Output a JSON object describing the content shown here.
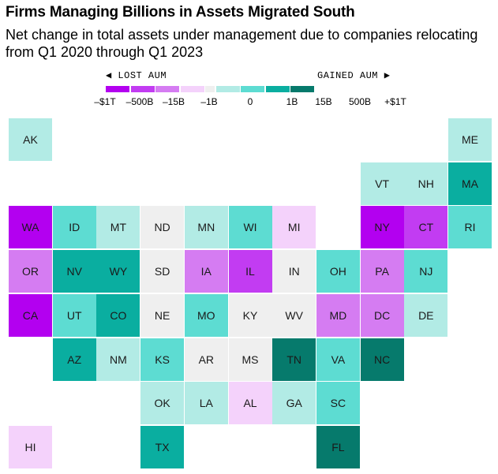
{
  "title": "Firms Managing Billions in Assets Migrated South",
  "subtitle": "Net change in total assets under management due to companies relocating from Q1 2020 through Q1 2023",
  "legend": {
    "lost_label": "◀ LOST AUM",
    "gained_label": "GAINED AUM ▶",
    "bins": [
      {
        "color": "#b300f0"
      },
      {
        "color": "#c23cf2"
      },
      {
        "color": "#d57cf2"
      },
      {
        "color": "#f4d2fb"
      },
      {
        "color": "#efefef"
      },
      {
        "color": "#b2ebe5"
      },
      {
        "color": "#5ddcd2"
      },
      {
        "color": "#0aaea0"
      },
      {
        "color": "#067a6c"
      }
    ],
    "ticks": [
      "–$1T",
      "–500B",
      "–15B",
      "–1B",
      "0",
      "1B",
      "15B",
      "500B",
      "+$1T"
    ]
  },
  "states": [
    {
      "abbr": "AK",
      "col": 0,
      "row": 0,
      "bin": 5
    },
    {
      "abbr": "ME",
      "col": 10,
      "row": 0,
      "bin": 5
    },
    {
      "abbr": "VT",
      "col": 8,
      "row": 1,
      "bin": 5
    },
    {
      "abbr": "NH",
      "col": 9,
      "row": 1,
      "bin": 5
    },
    {
      "abbr": "MA",
      "col": 10,
      "row": 1,
      "bin": 7
    },
    {
      "abbr": "WA",
      "col": 0,
      "row": 2,
      "bin": 0
    },
    {
      "abbr": "ID",
      "col": 1,
      "row": 2,
      "bin": 6
    },
    {
      "abbr": "MT",
      "col": 2,
      "row": 2,
      "bin": 5
    },
    {
      "abbr": "ND",
      "col": 3,
      "row": 2,
      "bin": 4
    },
    {
      "abbr": "MN",
      "col": 4,
      "row": 2,
      "bin": 5
    },
    {
      "abbr": "WI",
      "col": 5,
      "row": 2,
      "bin": 6
    },
    {
      "abbr": "MI",
      "col": 6,
      "row": 2,
      "bin": 3
    },
    {
      "abbr": "NY",
      "col": 8,
      "row": 2,
      "bin": 0
    },
    {
      "abbr": "CT",
      "col": 9,
      "row": 2,
      "bin": 1
    },
    {
      "abbr": "RI",
      "col": 10,
      "row": 2,
      "bin": 6
    },
    {
      "abbr": "OR",
      "col": 0,
      "row": 3,
      "bin": 2
    },
    {
      "abbr": "NV",
      "col": 1,
      "row": 3,
      "bin": 7
    },
    {
      "abbr": "WY",
      "col": 2,
      "row": 3,
      "bin": 7
    },
    {
      "abbr": "SD",
      "col": 3,
      "row": 3,
      "bin": 4
    },
    {
      "abbr": "IA",
      "col": 4,
      "row": 3,
      "bin": 2
    },
    {
      "abbr": "IL",
      "col": 5,
      "row": 3,
      "bin": 1
    },
    {
      "abbr": "IN",
      "col": 6,
      "row": 3,
      "bin": 4
    },
    {
      "abbr": "OH",
      "col": 7,
      "row": 3,
      "bin": 6
    },
    {
      "abbr": "PA",
      "col": 8,
      "row": 3,
      "bin": 2
    },
    {
      "abbr": "NJ",
      "col": 9,
      "row": 3,
      "bin": 6
    },
    {
      "abbr": "CA",
      "col": 0,
      "row": 4,
      "bin": 0
    },
    {
      "abbr": "UT",
      "col": 1,
      "row": 4,
      "bin": 6
    },
    {
      "abbr": "CO",
      "col": 2,
      "row": 4,
      "bin": 7
    },
    {
      "abbr": "NE",
      "col": 3,
      "row": 4,
      "bin": 4
    },
    {
      "abbr": "MO",
      "col": 4,
      "row": 4,
      "bin": 6
    },
    {
      "abbr": "KY",
      "col": 5,
      "row": 4,
      "bin": 4
    },
    {
      "abbr": "WV",
      "col": 6,
      "row": 4,
      "bin": 4
    },
    {
      "abbr": "MD",
      "col": 7,
      "row": 4,
      "bin": 2
    },
    {
      "abbr": "DC",
      "col": 8,
      "row": 4,
      "bin": 2
    },
    {
      "abbr": "DE",
      "col": 9,
      "row": 4,
      "bin": 5
    },
    {
      "abbr": "AZ",
      "col": 1,
      "row": 5,
      "bin": 7
    },
    {
      "abbr": "NM",
      "col": 2,
      "row": 5,
      "bin": 5
    },
    {
      "abbr": "KS",
      "col": 3,
      "row": 5,
      "bin": 6
    },
    {
      "abbr": "AR",
      "col": 4,
      "row": 5,
      "bin": 4
    },
    {
      "abbr": "MS",
      "col": 5,
      "row": 5,
      "bin": 4
    },
    {
      "abbr": "TN",
      "col": 6,
      "row": 5,
      "bin": 8
    },
    {
      "abbr": "VA",
      "col": 7,
      "row": 5,
      "bin": 6
    },
    {
      "abbr": "NC",
      "col": 8,
      "row": 5,
      "bin": 8
    },
    {
      "abbr": "OK",
      "col": 3,
      "row": 6,
      "bin": 5
    },
    {
      "abbr": "LA",
      "col": 4,
      "row": 6,
      "bin": 5
    },
    {
      "abbr": "AL",
      "col": 5,
      "row": 6,
      "bin": 3
    },
    {
      "abbr": "GA",
      "col": 6,
      "row": 6,
      "bin": 5
    },
    {
      "abbr": "SC",
      "col": 7,
      "row": 6,
      "bin": 6
    },
    {
      "abbr": "HI",
      "col": 0,
      "row": 7,
      "bin": 3
    },
    {
      "abbr": "TX",
      "col": 3,
      "row": 7,
      "bin": 7
    },
    {
      "abbr": "FL",
      "col": 7,
      "row": 7,
      "bin": 8
    }
  ]
}
